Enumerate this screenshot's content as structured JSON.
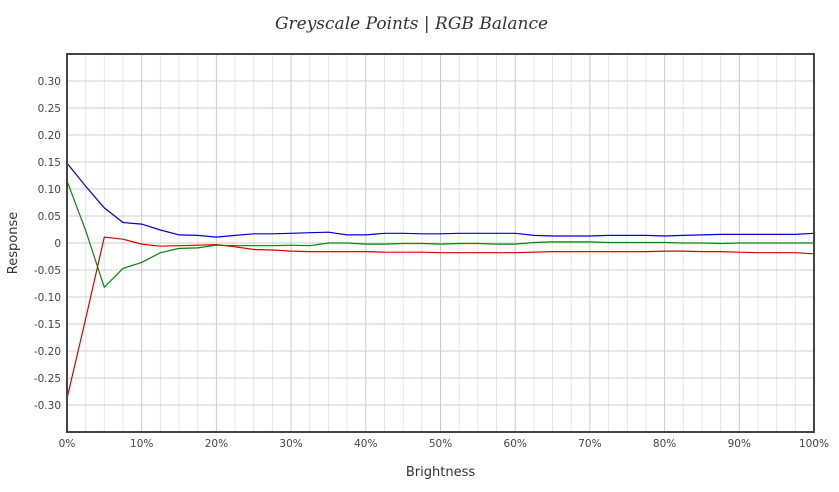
{
  "chart_data": {
    "type": "line",
    "title": "Greyscale Points | RGB Balance",
    "xlabel": "Brightness",
    "ylabel": "Response",
    "xlim": [
      0,
      100
    ],
    "ylim": [
      -0.35,
      0.35
    ],
    "x_ticks": [
      {
        "value": 0,
        "label": "0%"
      },
      {
        "value": 10,
        "label": "10%"
      },
      {
        "value": 20,
        "label": "20%"
      },
      {
        "value": 30,
        "label": "30%"
      },
      {
        "value": 40,
        "label": "40%"
      },
      {
        "value": 50,
        "label": "50%"
      },
      {
        "value": 60,
        "label": "60%"
      },
      {
        "value": 70,
        "label": "70%"
      },
      {
        "value": 80,
        "label": "80%"
      },
      {
        "value": 90,
        "label": "90%"
      },
      {
        "value": 100,
        "label": "100%"
      }
    ],
    "y_ticks": [
      {
        "value": 0.3,
        "label": "0.30"
      },
      {
        "value": 0.25,
        "label": "0.25"
      },
      {
        "value": 0.2,
        "label": "0.20"
      },
      {
        "value": 0.15,
        "label": "0.15"
      },
      {
        "value": 0.1,
        "label": "0.10"
      },
      {
        "value": 0.05,
        "label": "0.05"
      },
      {
        "value": 0,
        "label": "0"
      },
      {
        "value": -0.05,
        "label": "-0.05"
      },
      {
        "value": -0.1,
        "label": "-0.10"
      },
      {
        "value": -0.15,
        "label": "-0.15"
      },
      {
        "value": -0.2,
        "label": "-0.20"
      },
      {
        "value": -0.25,
        "label": "-0.25"
      },
      {
        "value": -0.3,
        "label": "-0.30"
      }
    ],
    "grid": true,
    "x": [
      0,
      2.5,
      5,
      7.5,
      10,
      12.5,
      15,
      17.5,
      20,
      22.5,
      25,
      27.5,
      30,
      32.5,
      35,
      37.5,
      40,
      42.5,
      45,
      47.5,
      50,
      52.5,
      55,
      57.5,
      60,
      62.5,
      65,
      67.5,
      70,
      72.5,
      75,
      77.5,
      80,
      82.5,
      85,
      87.5,
      90,
      92.5,
      95,
      97.5,
      100
    ],
    "series": [
      {
        "color": "#0000dd",
        "values": [
          0.148,
          0.105,
          0.065,
          0.038,
          0.035,
          0.024,
          0.015,
          0.014,
          0.011,
          0.014,
          0.017,
          0.017,
          0.018,
          0.019,
          0.02,
          0.015,
          0.015,
          0.018,
          0.018,
          0.017,
          0.017,
          0.018,
          0.018,
          0.018,
          0.018,
          0.014,
          0.013,
          0.013,
          0.013,
          0.014,
          0.014,
          0.014,
          0.013,
          0.014,
          0.015,
          0.016,
          0.016,
          0.016,
          0.016,
          0.016,
          0.018
        ]
      },
      {
        "color": "#dd0000",
        "values": [
          -0.288,
          -0.14,
          0.011,
          0.007,
          -0.002,
          -0.006,
          -0.005,
          -0.004,
          -0.003,
          -0.007,
          -0.012,
          -0.013,
          -0.015,
          -0.016,
          -0.016,
          -0.016,
          -0.016,
          -0.017,
          -0.017,
          -0.017,
          -0.018,
          -0.018,
          -0.018,
          -0.018,
          -0.018,
          -0.017,
          -0.016,
          -0.016,
          -0.016,
          -0.016,
          -0.016,
          -0.016,
          -0.015,
          -0.015,
          -0.016,
          -0.016,
          -0.017,
          -0.018,
          -0.018,
          -0.018,
          -0.02
        ]
      },
      {
        "color": "#008800",
        "values": [
          0.115,
          0.023,
          -0.082,
          -0.047,
          -0.036,
          -0.018,
          -0.01,
          -0.009,
          -0.004,
          -0.005,
          -0.005,
          -0.005,
          -0.004,
          -0.005,
          0.0,
          0.0,
          -0.002,
          -0.002,
          -0.001,
          -0.001,
          -0.002,
          -0.001,
          -0.001,
          -0.002,
          -0.002,
          0.001,
          0.002,
          0.002,
          0.002,
          0.001,
          0.001,
          0.001,
          0.001,
          0.0,
          0.0,
          -0.001,
          0.0,
          0.0,
          0.0,
          0.0,
          0.0
        ]
      }
    ]
  }
}
